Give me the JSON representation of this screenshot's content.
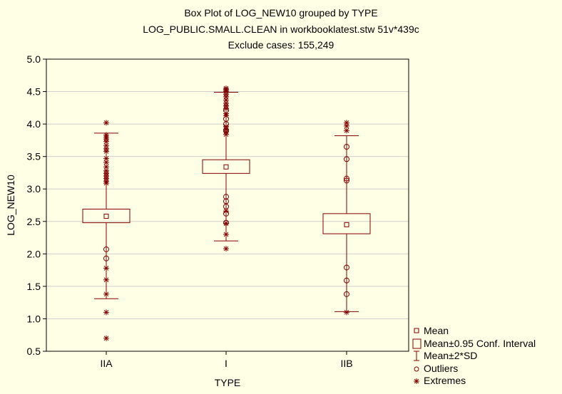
{
  "chart_data": {
    "type": "boxplot",
    "title": [
      "Box Plot of LOG_NEW10 grouped by  TYPE",
      "LOG_PUBLIC.SMALL.CLEAN in workbooklatest.stw 51v*439c",
      "Exclude cases: 155,249"
    ],
    "xlabel": "TYPE",
    "ylabel": "LOG_NEW10",
    "ylim": [
      0.5,
      5.0
    ],
    "yticks": [
      "0.5",
      "1.0",
      "1.5",
      "2.0",
      "2.5",
      "3.0",
      "3.5",
      "4.0",
      "4.5",
      "5.0"
    ],
    "ytick_values": [
      0.5,
      1.0,
      1.5,
      2.0,
      2.5,
      3.0,
      3.5,
      4.0,
      4.5,
      5.0
    ],
    "grid": true,
    "categories": [
      "IIA",
      "I",
      "IIB"
    ],
    "groups": [
      {
        "name": "IIA",
        "mean": 2.58,
        "ci_low": 2.48,
        "ci_high": 2.69,
        "sd2_low": 1.31,
        "sd2_high": 3.86,
        "outliers": [
          2.07,
          1.93
        ],
        "extremes": [
          4.02,
          3.83,
          3.8,
          3.77,
          3.73,
          3.67,
          3.62,
          3.58,
          3.47,
          3.41,
          3.34,
          3.28,
          3.24,
          3.2,
          3.16,
          3.12,
          3.09,
          1.78,
          1.6,
          1.38,
          1.1,
          0.7
        ]
      },
      {
        "name": "I",
        "mean": 3.34,
        "ci_low": 3.24,
        "ci_high": 3.45,
        "sd2_low": 2.2,
        "sd2_high": 4.49,
        "outliers": [
          4.21,
          4.08,
          4.0,
          3.9,
          2.88,
          2.81,
          2.73,
          2.62,
          2.48
        ],
        "extremes": [
          4.55,
          4.53,
          4.52,
          4.5,
          4.46,
          4.42,
          4.37,
          4.32,
          4.28,
          4.24,
          4.16,
          4.13,
          3.96,
          3.92,
          3.88,
          3.84,
          2.66,
          2.47,
          2.3,
          2.08
        ]
      },
      {
        "name": "IIB",
        "mean": 2.45,
        "ci_low": 2.31,
        "ci_high": 2.62,
        "sd2_low": 1.11,
        "sd2_high": 3.82,
        "outliers": [
          3.65,
          3.46,
          3.16,
          3.13,
          1.79,
          1.59,
          1.38
        ],
        "extremes": [
          4.02,
          3.97,
          3.9,
          1.1
        ]
      }
    ],
    "legend": {
      "position": "bottom-right",
      "entries": [
        {
          "symbol": "mean-square",
          "label": "Mean"
        },
        {
          "symbol": "box",
          "label": "Mean±0.95 Conf. Interval"
        },
        {
          "symbol": "whisker",
          "label": "Mean±2*SD"
        },
        {
          "symbol": "circle",
          "label": "Outliers"
        },
        {
          "symbol": "star",
          "label": "Extremes"
        }
      ]
    },
    "colors": {
      "series": "#800000",
      "grid": "#cfcfcf",
      "background": "#ffffe6",
      "axis": "#000000"
    }
  }
}
